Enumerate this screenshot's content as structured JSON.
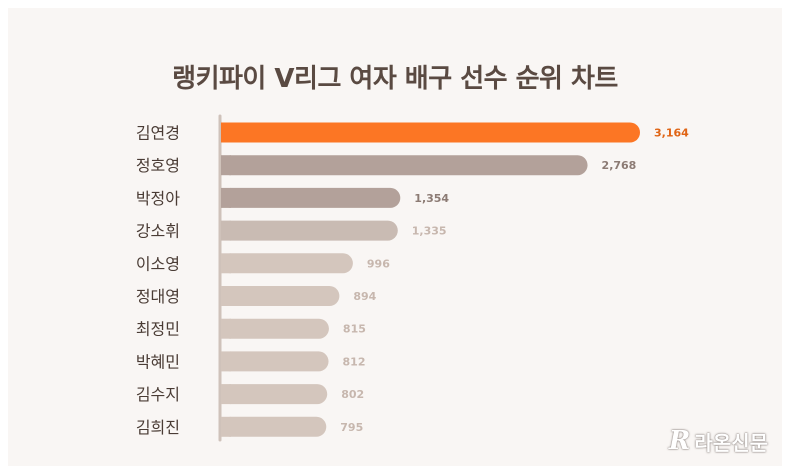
{
  "colors": {
    "highlight": "#fc7624",
    "dark": "#b3a19a",
    "mid": "#c9bbb3",
    "light": "#d4c6bd",
    "axis": "#cfc2ba",
    "value_dark": "#8c7b74",
    "value_light": "#c7b7ae",
    "value_highlight": "#e06414"
  },
  "chart_data": {
    "type": "bar",
    "orientation": "horizontal",
    "title": "랭키파이 V리그 여자 배구 선수 순위 차트",
    "categories": [
      "김연경",
      "정호영",
      "박정아",
      "강소휘",
      "이소영",
      "정대영",
      "최정민",
      "박혜민",
      "김수지",
      "김희진"
    ],
    "values": [
      3164,
      2768,
      1354,
      1335,
      996,
      894,
      815,
      812,
      802,
      795
    ],
    "value_labels": [
      "3,164",
      "2,768",
      "1,354",
      "1,335",
      "996",
      "894",
      "815",
      "812",
      "802",
      "795"
    ],
    "grid": false,
    "legend": "none"
  },
  "watermark": {
    "logo": "R",
    "text": "라온신문"
  }
}
